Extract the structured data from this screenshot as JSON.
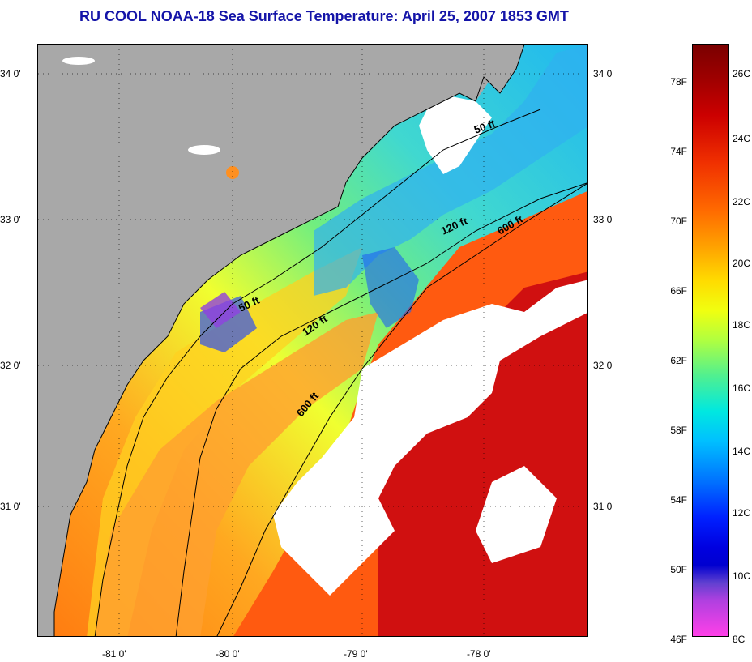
{
  "title": "RU COOL  NOAA-18  Sea Surface Temperature:  April 25, 2007 1853 GMT",
  "latitude_labels": [
    "34 0'",
    "33 0'",
    "32 0'",
    "31 0'"
  ],
  "longitude_labels": [
    "-81 0'",
    "-80 0'",
    "-79 0'",
    "-78 0'"
  ],
  "contour_labels": [
    "50 ft",
    "120 ft",
    "600 ft",
    "50 ft",
    "120 ft",
    "600 ft"
  ],
  "colorbar": {
    "fahrenheit_labels": [
      "78F",
      "74F",
      "70F",
      "66F",
      "62F",
      "58F",
      "54F",
      "50F",
      "46F"
    ],
    "celsius_labels": [
      "26C",
      "24C",
      "22C",
      "20C",
      "18C",
      "16C",
      "14C",
      "12C",
      "10C",
      "8C"
    ]
  },
  "colors": {
    "title": "#1414a8",
    "land": "#a8a8a8",
    "cloud": "#ffffff"
  }
}
